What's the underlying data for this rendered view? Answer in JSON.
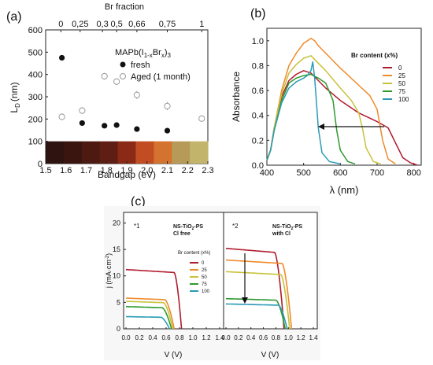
{
  "chart_data": [
    {
      "panel_label": "(a)",
      "type": "scatter",
      "xlabel": "Bandgap (eV)",
      "ylabel": "L",
      "ylabel_sub": "D",
      "ylabel_unit": "(nm)",
      "xlim": [
        1.5,
        2.3
      ],
      "ylim": [
        0,
        600
      ],
      "x_ticks": [
        "1.5",
        "1.6",
        "1.7",
        "1.8",
        "1.9",
        "2.0",
        "2.1",
        "2.2",
        "2.3"
      ],
      "y_ticks": [
        "0",
        "100",
        "200",
        "300",
        "400",
        "500",
        "600"
      ],
      "top_axis_label": "Br fraction",
      "top_ticks": [
        {
          "label": "0",
          "x": 1.575
        },
        {
          "label": "0,25",
          "x": 1.67
        },
        {
          "label": "0,3",
          "x": 1.78
        },
        {
          "label": "0,5",
          "x": 1.85
        },
        {
          "label": "0,66",
          "x": 1.95
        },
        {
          "label": "0,75",
          "x": 2.1
        },
        {
          "label": "1",
          "x": 2.27
        }
      ],
      "legend_title": "MAPb(I",
      "legend_title_sub": "1-x",
      "legend_title_mid": "Br",
      "legend_title_sub2": "x",
      "legend_title_end": ")",
      "legend_title_sub3": "3",
      "series": [
        {
          "name": "fresh",
          "x": [
            1.58,
            1.68,
            1.79,
            1.85,
            1.95,
            2.1
          ],
          "y": [
            475,
            182,
            170,
            173,
            155,
            148
          ]
        },
        {
          "name": "Aged (1 month)",
          "x": [
            1.58,
            1.68,
            1.79,
            1.85,
            1.95,
            2.1,
            2.27
          ],
          "y": [
            210,
            238,
            392,
            368,
            308,
            258,
            202
          ],
          "error": [
            15,
            15,
            15,
            15,
            18,
            18,
            8
          ]
        }
      ],
      "film_colors": [
        "#2e1410",
        "#3a1510",
        "#4d1a12",
        "#5e1e14",
        "#8a2a16",
        "#c24d22",
        "#d47230",
        "#b89a58",
        "#c2b46a"
      ]
    },
    {
      "panel_label": "(b)",
      "type": "line",
      "xlabel": "λ (nm)",
      "ylabel": "Absorbance",
      "xlim": [
        400,
        820
      ],
      "ylim": [
        0,
        1.1
      ],
      "x_ticks": [
        "400",
        "500",
        "600",
        "700",
        "800"
      ],
      "y_ticks": [
        "0.0",
        "0.2",
        "0.4",
        "0.6",
        "0.8",
        "1.0"
      ],
      "legend_title": "Br content (x%)",
      "series": [
        {
          "name": "0",
          "color": "#b01c2e",
          "x": [
            400,
            410,
            420,
            440,
            460,
            480,
            500,
            520,
            540,
            560,
            600,
            650,
            700,
            730,
            750,
            770,
            790,
            810
          ],
          "y": [
            0.04,
            0.12,
            0.3,
            0.55,
            0.68,
            0.73,
            0.76,
            0.74,
            0.68,
            0.62,
            0.52,
            0.42,
            0.35,
            0.3,
            0.18,
            0.06,
            0.02,
            0.0
          ]
        },
        {
          "name": "25",
          "color": "#ef8a2a",
          "x": [
            400,
            410,
            420,
            440,
            460,
            480,
            500,
            520,
            530,
            540,
            560,
            600,
            640,
            680,
            700,
            715,
            730,
            750
          ],
          "y": [
            0.04,
            0.12,
            0.3,
            0.6,
            0.8,
            0.9,
            0.98,
            1.02,
            1.0,
            0.96,
            0.9,
            0.78,
            0.67,
            0.56,
            0.45,
            0.2,
            0.05,
            0.01
          ]
        },
        {
          "name": "50",
          "color": "#c8c23a",
          "x": [
            400,
            410,
            420,
            440,
            460,
            480,
            500,
            520,
            540,
            560,
            600,
            630,
            650,
            660,
            670,
            690,
            710
          ],
          "y": [
            0.04,
            0.12,
            0.3,
            0.57,
            0.74,
            0.81,
            0.86,
            0.88,
            0.82,
            0.76,
            0.62,
            0.52,
            0.42,
            0.3,
            0.14,
            0.03,
            0.01
          ]
        },
        {
          "name": "75",
          "color": "#2e9a2e",
          "x": [
            400,
            410,
            420,
            440,
            460,
            480,
            500,
            520,
            540,
            560,
            580,
            590,
            600,
            620,
            640
          ],
          "y": [
            0.04,
            0.12,
            0.28,
            0.52,
            0.66,
            0.7,
            0.72,
            0.73,
            0.7,
            0.66,
            0.52,
            0.28,
            0.12,
            0.03,
            0.01
          ]
        },
        {
          "name": "100",
          "color": "#2a9bb5",
          "x": [
            400,
            410,
            420,
            440,
            460,
            480,
            500,
            510,
            520,
            525,
            530,
            540,
            550,
            570,
            600
          ],
          "y": [
            0.04,
            0.12,
            0.28,
            0.5,
            0.62,
            0.67,
            0.7,
            0.72,
            0.76,
            0.83,
            0.7,
            0.3,
            0.1,
            0.03,
            0.01
          ]
        }
      ]
    },
    {
      "panel_label": "(c)",
      "type": "line",
      "xlabel": "V (V)",
      "ylabel": "j (mA·cm",
      "ylabel_sup": "-2",
      "ylabel_end": ")",
      "xlim": [
        0,
        1.4
      ],
      "ylim": [
        0,
        22
      ],
      "x_ticks": [
        "0.0",
        "0.2",
        "0.4",
        "0.6",
        "0.8",
        "1.0",
        "1.2",
        "1.4"
      ],
      "y_ticks": [
        "0",
        "5",
        "10",
        "15",
        "20"
      ],
      "legend_title": "Br content (x%)",
      "subplots": [
        {
          "tag": "*1",
          "sample": "NS-TiO",
          "sample_sub": "2",
          "sample_end": "-PS",
          "condition": "Cl free",
          "series": [
            {
              "name": "0",
              "color": "#b01c2e",
              "jsc": 11.2,
              "voc": 0.83,
              "knee": 0.72
            },
            {
              "name": "25",
              "color": "#ef8a2a",
              "jsc": 5.8,
              "voc": 0.72,
              "knee": 0.58
            },
            {
              "name": "50",
              "color": "#c8c23a",
              "jsc": 5.2,
              "voc": 0.7,
              "knee": 0.56
            },
            {
              "name": "75",
              "color": "#2e9a2e",
              "jsc": 4.2,
              "voc": 0.68,
              "knee": 0.54
            },
            {
              "name": "100",
              "color": "#2a9bb5",
              "jsc": 2.3,
              "voc": 0.65,
              "knee": 0.52
            }
          ]
        },
        {
          "tag": "*2",
          "sample": "NS-TiO",
          "sample_sub": "2",
          "sample_end": "-PS",
          "condition": "with Cl",
          "series": [
            {
              "name": "0",
              "color": "#b01c2e",
              "jsc": 15.2,
              "voc": 0.93,
              "knee": 0.78
            },
            {
              "name": "25",
              "color": "#ef8a2a",
              "jsc": 13.0,
              "voc": 1.05,
              "knee": 0.9
            },
            {
              "name": "50",
              "color": "#c8c23a",
              "jsc": 10.8,
              "voc": 1.02,
              "knee": 0.88
            },
            {
              "name": "75",
              "color": "#2e9a2e",
              "jsc": 5.7,
              "voc": 0.95,
              "knee": 0.8
            },
            {
              "name": "100",
              "color": "#2a9bb5",
              "jsc": 4.7,
              "voc": 0.98,
              "knee": 0.84
            }
          ]
        }
      ]
    }
  ]
}
